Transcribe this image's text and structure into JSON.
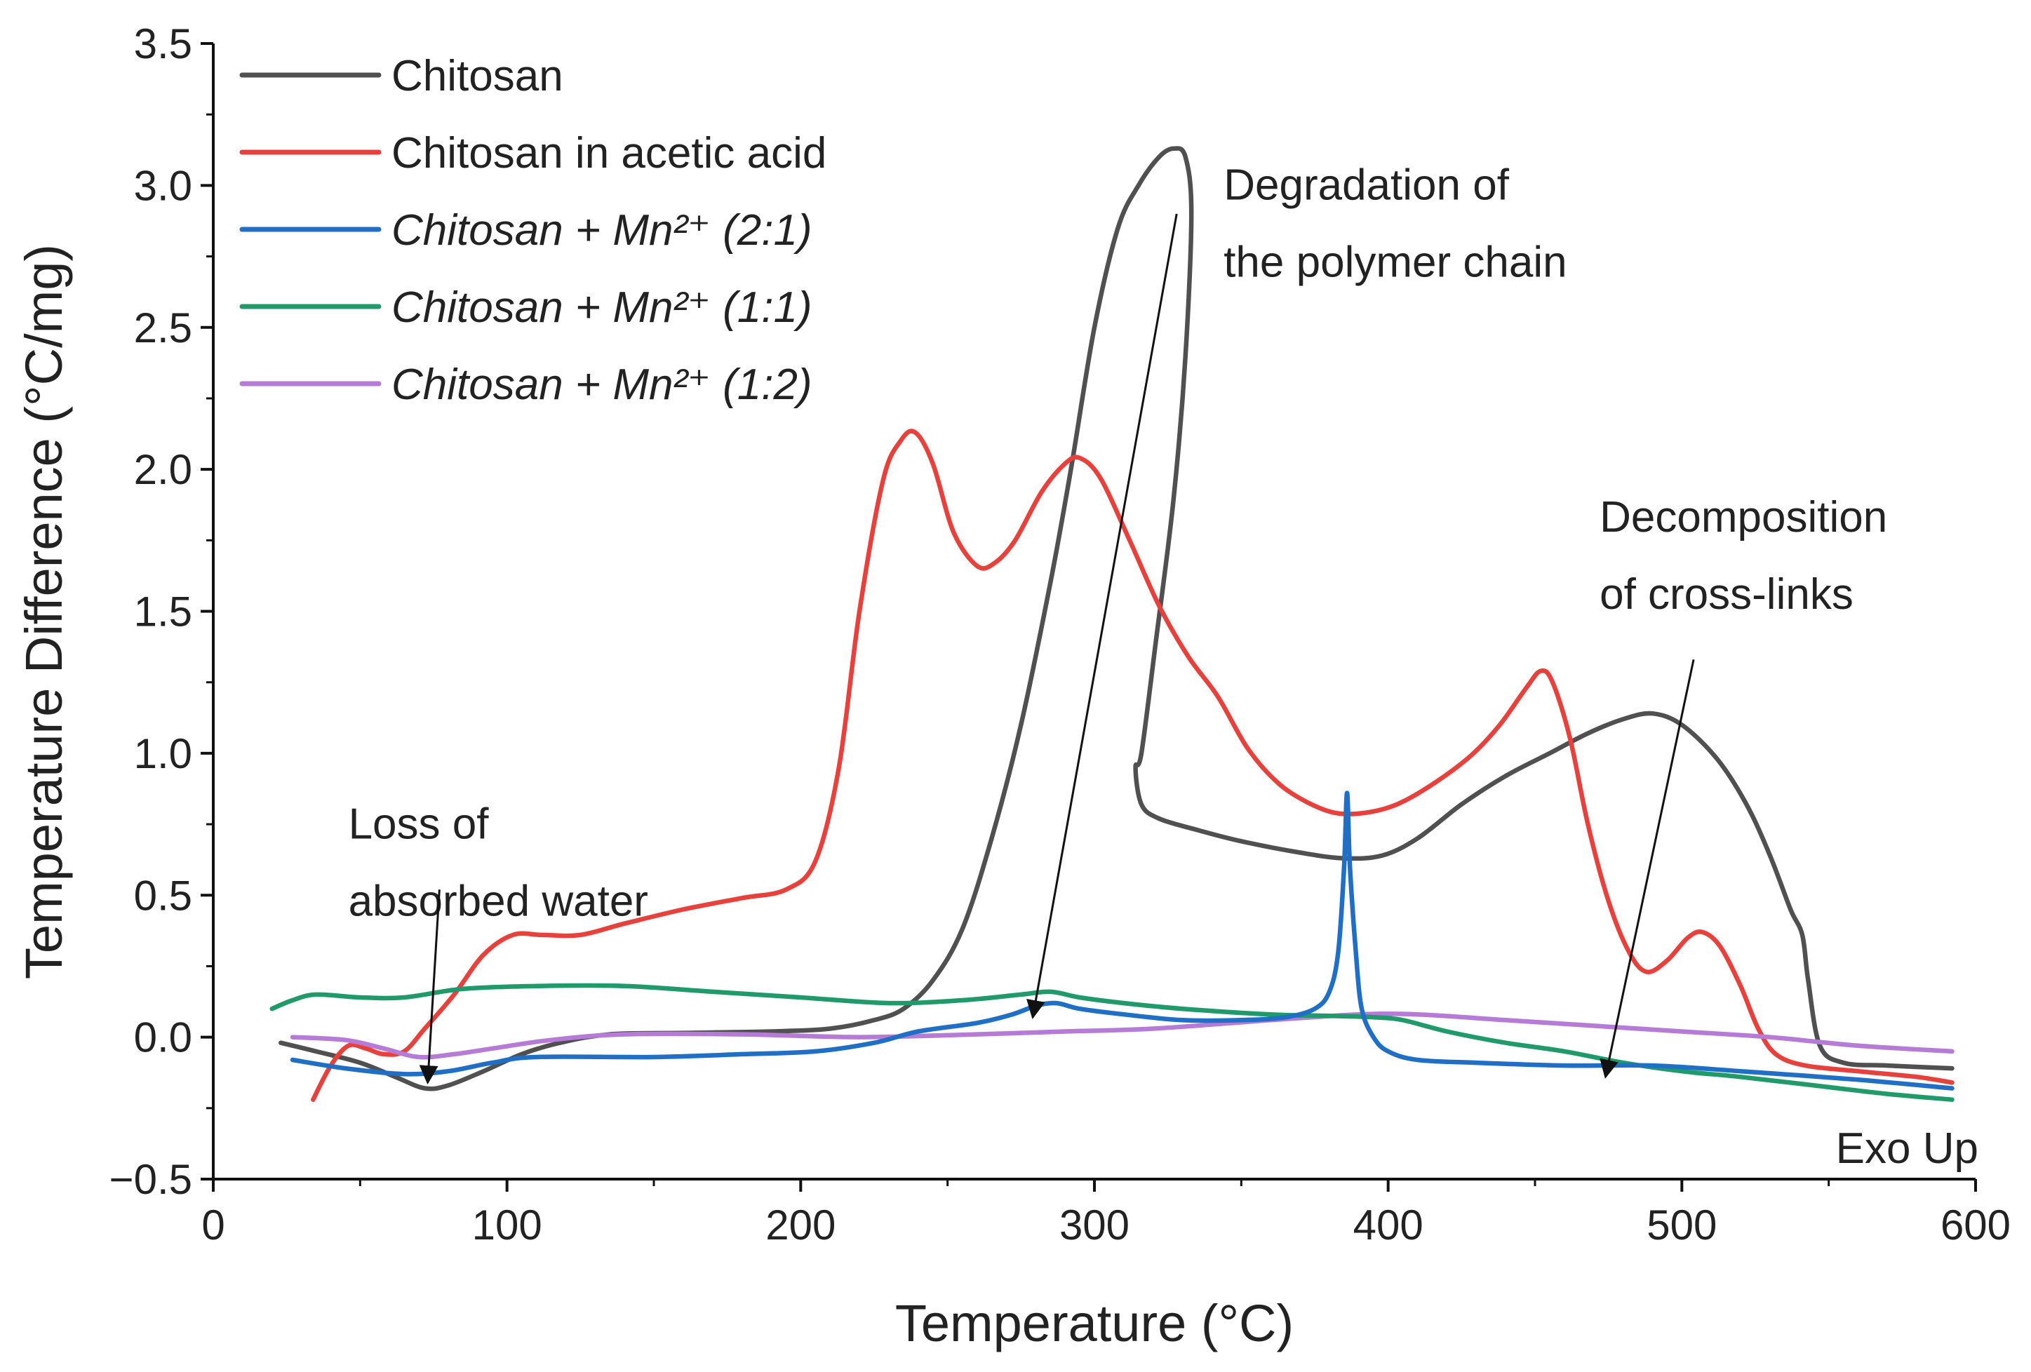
{
  "chart_data": {
    "type": "line",
    "title": "",
    "xlabel": "Temperature (°C)",
    "ylabel": "Temperature Difference (°C/mg)",
    "xlim": [
      0,
      600
    ],
    "ylim": [
      -0.5,
      3.5
    ],
    "x_ticks": [
      0,
      100,
      200,
      300,
      400,
      500,
      600
    ],
    "x_tick_labels": [
      "0",
      "100",
      "200",
      "300",
      "400",
      "500",
      "600"
    ],
    "y_ticks": [
      -0.5,
      0.0,
      0.5,
      1.0,
      1.5,
      2.0,
      2.5,
      3.0,
      3.5
    ],
    "y_tick_labels": [
      "−0.5",
      "0.0",
      "0.5",
      "1.0",
      "1.5",
      "2.0",
      "2.5",
      "3.0",
      "3.5"
    ],
    "grid": false,
    "legend_position": "top-left",
    "corner_label": "Exo Up",
    "series": [
      {
        "name": "Chitosan",
        "italic": false,
        "color": "#505050",
        "points": [
          [
            23,
            -0.02
          ],
          [
            35,
            -0.05
          ],
          [
            50,
            -0.09
          ],
          [
            62,
            -0.14
          ],
          [
            72,
            -0.18
          ],
          [
            80,
            -0.17
          ],
          [
            92,
            -0.12
          ],
          [
            105,
            -0.06
          ],
          [
            118,
            -0.02
          ],
          [
            135,
            0.01
          ],
          [
            160,
            0.015
          ],
          [
            190,
            0.02
          ],
          [
            210,
            0.03
          ],
          [
            225,
            0.06
          ],
          [
            235,
            0.1
          ],
          [
            245,
            0.2
          ],
          [
            255,
            0.38
          ],
          [
            265,
            0.7
          ],
          [
            275,
            1.1
          ],
          [
            285,
            1.6
          ],
          [
            292,
            2.0
          ],
          [
            300,
            2.5
          ],
          [
            308,
            2.85
          ],
          [
            315,
            3.0
          ],
          [
            322,
            3.1
          ],
          [
            327,
            3.13
          ],
          [
            331,
            3.1
          ],
          [
            333,
            2.9
          ],
          [
            331,
            2.4
          ],
          [
            327,
            1.9
          ],
          [
            321,
            1.4
          ],
          [
            316,
            1.0
          ],
          [
            314,
            0.95
          ],
          [
            316,
            0.82
          ],
          [
            322,
            0.77
          ],
          [
            335,
            0.73
          ],
          [
            350,
            0.69
          ],
          [
            370,
            0.65
          ],
          [
            385,
            0.63
          ],
          [
            398,
            0.64
          ],
          [
            410,
            0.7
          ],
          [
            425,
            0.82
          ],
          [
            440,
            0.92
          ],
          [
            455,
            1.0
          ],
          [
            468,
            1.07
          ],
          [
            480,
            1.12
          ],
          [
            490,
            1.14
          ],
          [
            500,
            1.1
          ],
          [
            512,
            0.98
          ],
          [
            522,
            0.82
          ],
          [
            530,
            0.64
          ],
          [
            537,
            0.45
          ],
          [
            541,
            0.36
          ],
          [
            543,
            0.2
          ],
          [
            547,
            -0.03
          ],
          [
            555,
            -0.09
          ],
          [
            570,
            -0.1
          ],
          [
            592,
            -0.11
          ]
        ]
      },
      {
        "name": "Chitosan in acetic acid",
        "italic": false,
        "color": "#e8413c",
        "points": [
          [
            34,
            -0.22
          ],
          [
            40,
            -0.1
          ],
          [
            46,
            -0.03
          ],
          [
            52,
            -0.04
          ],
          [
            58,
            -0.06
          ],
          [
            65,
            -0.05
          ],
          [
            72,
            0.03
          ],
          [
            82,
            0.15
          ],
          [
            92,
            0.29
          ],
          [
            102,
            0.36
          ],
          [
            112,
            0.36
          ],
          [
            125,
            0.36
          ],
          [
            140,
            0.4
          ],
          [
            160,
            0.45
          ],
          [
            180,
            0.49
          ],
          [
            195,
            0.52
          ],
          [
            205,
            0.62
          ],
          [
            213,
            0.95
          ],
          [
            220,
            1.5
          ],
          [
            228,
            1.96
          ],
          [
            234,
            2.1
          ],
          [
            239,
            2.13
          ],
          [
            245,
            2.02
          ],
          [
            252,
            1.78
          ],
          [
            260,
            1.66
          ],
          [
            266,
            1.67
          ],
          [
            273,
            1.75
          ],
          [
            282,
            1.92
          ],
          [
            290,
            2.02
          ],
          [
            295,
            2.04
          ],
          [
            302,
            1.97
          ],
          [
            312,
            1.75
          ],
          [
            322,
            1.52
          ],
          [
            332,
            1.34
          ],
          [
            342,
            1.2
          ],
          [
            352,
            1.02
          ],
          [
            362,
            0.9
          ],
          [
            372,
            0.83
          ],
          [
            382,
            0.79
          ],
          [
            392,
            0.79
          ],
          [
            403,
            0.82
          ],
          [
            415,
            0.89
          ],
          [
            428,
            0.99
          ],
          [
            438,
            1.1
          ],
          [
            447,
            1.23
          ],
          [
            452,
            1.29
          ],
          [
            456,
            1.25
          ],
          [
            462,
            1.05
          ],
          [
            468,
            0.75
          ],
          [
            475,
            0.48
          ],
          [
            482,
            0.3
          ],
          [
            488,
            0.23
          ],
          [
            495,
            0.27
          ],
          [
            502,
            0.35
          ],
          [
            507,
            0.37
          ],
          [
            513,
            0.32
          ],
          [
            520,
            0.18
          ],
          [
            526,
            0.03
          ],
          [
            532,
            -0.06
          ],
          [
            542,
            -0.1
          ],
          [
            560,
            -0.12
          ],
          [
            580,
            -0.14
          ],
          [
            592,
            -0.16
          ]
        ]
      },
      {
        "name": "Chitosan + Mn²⁺ (2:1)",
        "italic": true,
        "color": "#1f6fc6",
        "points": [
          [
            27,
            -0.08
          ],
          [
            45,
            -0.11
          ],
          [
            65,
            -0.13
          ],
          [
            80,
            -0.12
          ],
          [
            95,
            -0.09
          ],
          [
            110,
            -0.07
          ],
          [
            150,
            -0.07
          ],
          [
            180,
            -0.06
          ],
          [
            205,
            -0.05
          ],
          [
            225,
            -0.02
          ],
          [
            240,
            0.02
          ],
          [
            260,
            0.05
          ],
          [
            272,
            0.08
          ],
          [
            280,
            0.11
          ],
          [
            287,
            0.12
          ],
          [
            295,
            0.1
          ],
          [
            310,
            0.08
          ],
          [
            330,
            0.06
          ],
          [
            350,
            0.06
          ],
          [
            365,
            0.07
          ],
          [
            375,
            0.1
          ],
          [
            380,
            0.16
          ],
          [
            383,
            0.3
          ],
          [
            385,
            0.6
          ],
          [
            386,
            0.86
          ],
          [
            387,
            0.6
          ],
          [
            389,
            0.3
          ],
          [
            391,
            0.1
          ],
          [
            395,
            0.0
          ],
          [
            400,
            -0.05
          ],
          [
            410,
            -0.08
          ],
          [
            430,
            -0.09
          ],
          [
            460,
            -0.1
          ],
          [
            490,
            -0.1
          ],
          [
            520,
            -0.12
          ],
          [
            560,
            -0.15
          ],
          [
            592,
            -0.18
          ]
        ]
      },
      {
        "name": "Chitosan + Mn²⁺ (1:1)",
        "italic": true,
        "color": "#1f9a6b",
        "points": [
          [
            20,
            0.1
          ],
          [
            27,
            0.13
          ],
          [
            35,
            0.15
          ],
          [
            50,
            0.14
          ],
          [
            65,
            0.14
          ],
          [
            85,
            0.17
          ],
          [
            110,
            0.18
          ],
          [
            140,
            0.18
          ],
          [
            170,
            0.16
          ],
          [
            200,
            0.14
          ],
          [
            230,
            0.12
          ],
          [
            255,
            0.13
          ],
          [
            275,
            0.15
          ],
          [
            285,
            0.16
          ],
          [
            295,
            0.14
          ],
          [
            310,
            0.12
          ],
          [
            330,
            0.1
          ],
          [
            360,
            0.08
          ],
          [
            380,
            0.075
          ],
          [
            395,
            0.07
          ],
          [
            405,
            0.06
          ],
          [
            420,
            0.02
          ],
          [
            440,
            -0.02
          ],
          [
            460,
            -0.05
          ],
          [
            480,
            -0.09
          ],
          [
            500,
            -0.12
          ],
          [
            520,
            -0.14
          ],
          [
            545,
            -0.17
          ],
          [
            570,
            -0.2
          ],
          [
            592,
            -0.22
          ]
        ]
      },
      {
        "name": "Chitosan + Mn²⁺ (1:2)",
        "italic": true,
        "color": "#b57bd6",
        "points": [
          [
            27,
            0.0
          ],
          [
            45,
            -0.01
          ],
          [
            58,
            -0.04
          ],
          [
            70,
            -0.07
          ],
          [
            82,
            -0.06
          ],
          [
            95,
            -0.04
          ],
          [
            115,
            -0.01
          ],
          [
            140,
            0.01
          ],
          [
            180,
            0.01
          ],
          [
            220,
            0.0
          ],
          [
            260,
            0.01
          ],
          [
            290,
            0.02
          ],
          [
            320,
            0.03
          ],
          [
            360,
            0.06
          ],
          [
            390,
            0.08
          ],
          [
            410,
            0.08
          ],
          [
            440,
            0.06
          ],
          [
            470,
            0.04
          ],
          [
            500,
            0.02
          ],
          [
            530,
            0.0
          ],
          [
            560,
            -0.03
          ],
          [
            592,
            -0.05
          ]
        ]
      }
    ],
    "annotations": [
      {
        "name": "water-loss",
        "lines": [
          "Loss of",
          "absorbed water"
        ],
        "text_x": 46,
        "text_y": 0.7,
        "arrow_from": [
          77,
          0.52
        ],
        "arrow_to": [
          73,
          -0.16
        ]
      },
      {
        "name": "polymer-degradation",
        "lines": [
          "Degradation of",
          "the polymer chain"
        ],
        "text_x": 344,
        "text_y": 2.95,
        "arrow_from": [
          328,
          2.9
        ],
        "arrow_to": [
          279,
          0.07
        ]
      },
      {
        "name": "crosslink-decomposition",
        "lines": [
          "Decomposition",
          "of cross-links"
        ],
        "text_x": 472,
        "text_y": 1.78,
        "arrow_from": [
          504,
          1.33
        ],
        "arrow_to": [
          474,
          -0.14
        ]
      }
    ]
  }
}
